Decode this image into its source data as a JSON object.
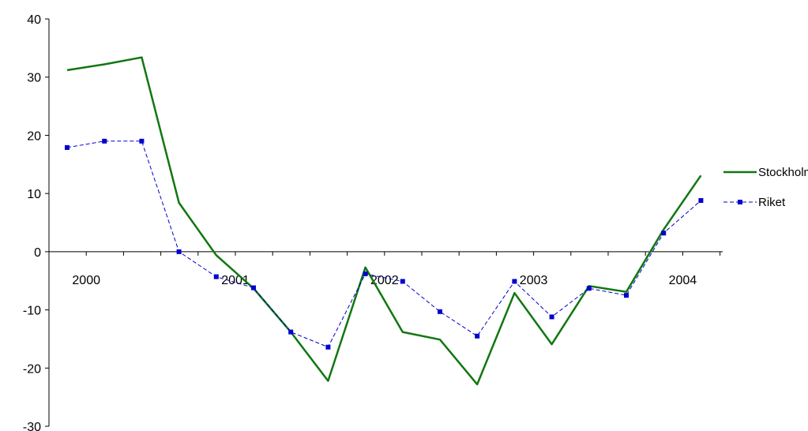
{
  "chart_data": {
    "type": "line",
    "title": "",
    "xlabel": "",
    "ylabel": "",
    "ylim": [
      -30,
      40
    ],
    "yticks": [
      -30,
      -20,
      -10,
      0,
      10,
      20,
      30,
      40
    ],
    "year_labels": [
      "2000",
      "2001",
      "2002",
      "2003",
      "2004"
    ],
    "x": [
      "2000 Q1",
      "2000 Q2",
      "2000 Q3",
      "2000 Q4",
      "2001 Q1",
      "2001 Q2",
      "2001 Q3",
      "2001 Q4",
      "2002 Q1",
      "2002 Q2",
      "2002 Q3",
      "2002 Q4",
      "2003 Q1",
      "2003 Q2",
      "2003 Q3",
      "2003 Q4",
      "2004 Q1",
      "2004 Q2"
    ],
    "legend_position": "right",
    "grid": false,
    "series": [
      {
        "name": "Stockholm",
        "color": "#117711",
        "style": "solid",
        "values": [
          31.2,
          32.2,
          33.4,
          8.4,
          -0.6,
          -6.3,
          -13.8,
          -22.2,
          -2.7,
          -13.8,
          -15.1,
          -22.8,
          -7.1,
          -15.9,
          -5.9,
          -6.9,
          3.8,
          13.1
        ]
      },
      {
        "name": "Riket",
        "color": "#0000cc",
        "style": "dashed",
        "values": [
          17.9,
          19.0,
          19.0,
          0.0,
          -4.3,
          -6.2,
          -13.8,
          -16.4,
          -3.8,
          -5.1,
          -10.3,
          -14.5,
          -5.1,
          -11.2,
          -6.3,
          -7.5,
          3.2,
          8.8
        ]
      }
    ]
  }
}
